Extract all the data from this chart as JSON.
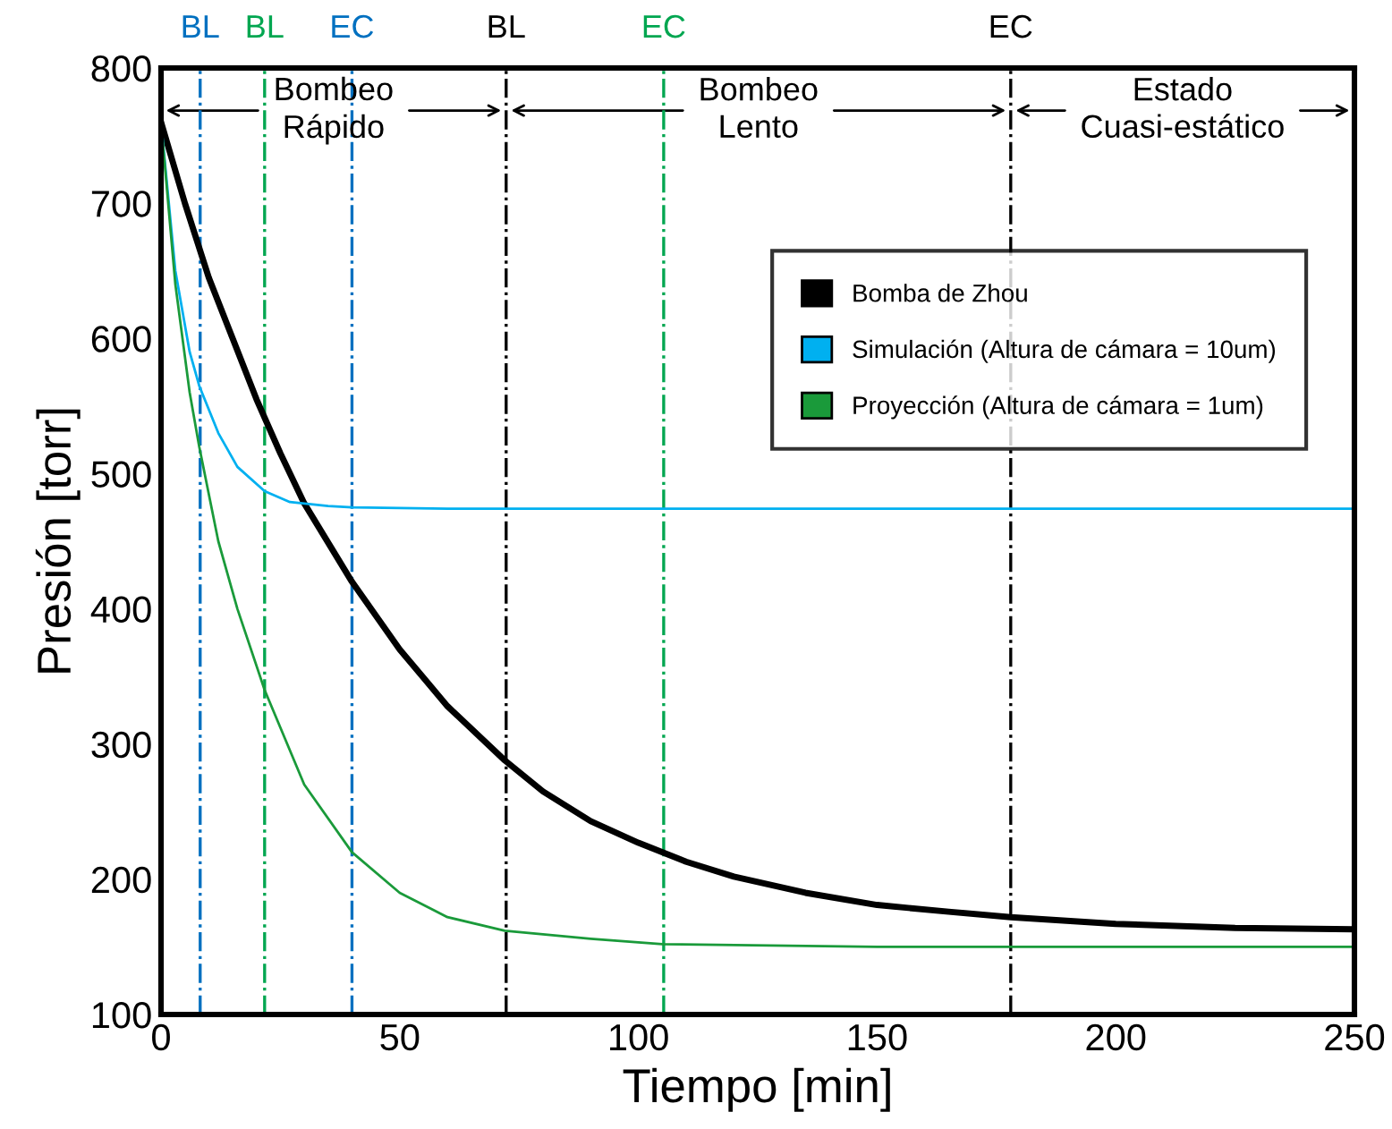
{
  "chart_data": {
    "type": "line",
    "xlabel": "Tiempo [min]",
    "ylabel": "Presión [torr]",
    "xlim": [
      0,
      250
    ],
    "xticks": [
      0,
      50,
      100,
      150,
      200,
      250
    ],
    "ylim": [
      100,
      800
    ],
    "yticks": [
      100,
      200,
      300,
      400,
      500,
      600,
      700,
      800
    ],
    "grid": false,
    "legend": "upper right",
    "line_style": "solid",
    "series": [
      {
        "name": "Bomba de Zhou",
        "color": "#000000",
        "x": [
          0,
          5,
          10,
          15,
          20,
          25,
          30,
          40,
          50,
          60,
          72,
          80,
          90,
          100,
          110,
          120,
          135,
          150,
          165,
          178,
          200,
          225,
          250
        ],
        "values": [
          760,
          700,
          645,
          600,
          555,
          515,
          478,
          420,
          370,
          328,
          288,
          265,
          243,
          227,
          213,
          202,
          190,
          181,
          176,
          172,
          167,
          164,
          163
        ]
      },
      {
        "name": "Simulación (Altura de cámara = 10um)",
        "color": "#00b0f0",
        "x": [
          0,
          3,
          6,
          8,
          12,
          16,
          21.7,
          27,
          35,
          40,
          60,
          100,
          250
        ],
        "values": [
          760,
          650,
          590,
          565,
          530,
          505,
          487,
          479,
          476,
          475,
          474,
          474,
          474
        ]
      },
      {
        "name": "Proyección (Altura de cámara = 1um)",
        "color": "#1a9a3a",
        "x": [
          0,
          3,
          6,
          8,
          12,
          16,
          21.7,
          30,
          40,
          50,
          60,
          72,
          90,
          105,
          150,
          250
        ],
        "values": [
          760,
          640,
          560,
          520,
          450,
          400,
          340,
          270,
          220,
          190,
          172,
          162,
          156,
          152,
          150,
          150
        ]
      }
    ],
    "ref_lines": [
      {
        "axis": "x",
        "value": 8.2,
        "label": "BL",
        "color": "#0070c0",
        "line_style": "dashdot"
      },
      {
        "axis": "x",
        "value": 21.7,
        "label": "BL",
        "color": "#00a650",
        "line_style": "dashdot"
      },
      {
        "axis": "x",
        "value": 40,
        "label": "EC",
        "color": "#0070c0",
        "line_style": "dashdot"
      },
      {
        "axis": "x",
        "value": 72.3,
        "label": "BL",
        "color": "#000000",
        "line_style": "dashdot"
      },
      {
        "axis": "x",
        "value": 105.3,
        "label": "EC",
        "color": "#00a650",
        "line_style": "dashdot"
      },
      {
        "axis": "x",
        "value": 178,
        "label": "EC",
        "color": "#000000",
        "line_style": "dashdot"
      }
    ],
    "annotations": [
      "Bombeo\nRápido",
      "Bombeo\nLento",
      "Estado\nCuasi-estático"
    ]
  }
}
